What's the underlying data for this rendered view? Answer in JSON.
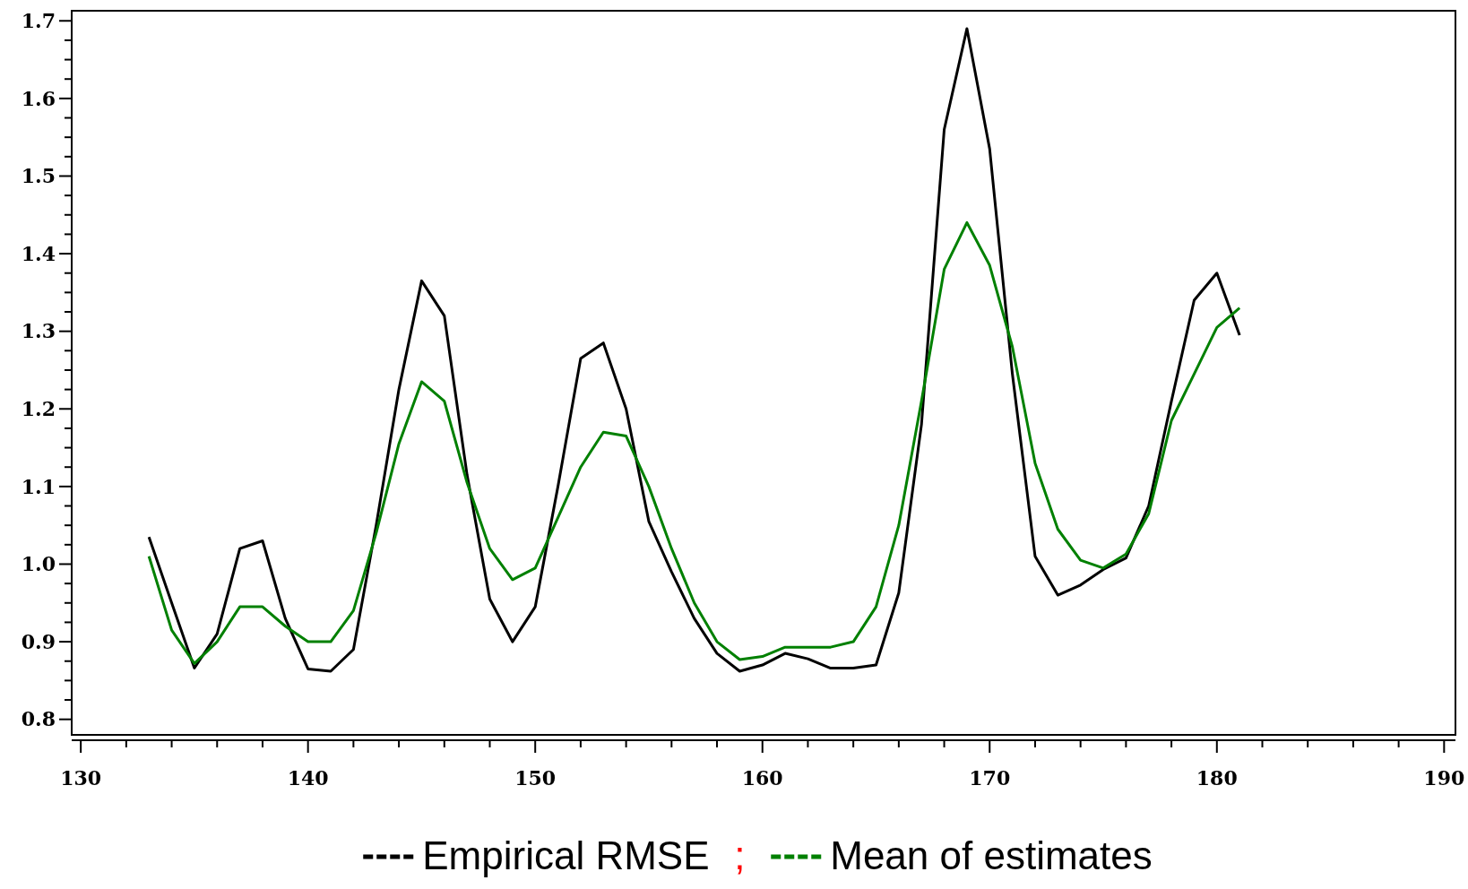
{
  "chart_data": {
    "type": "line",
    "x": [
      133,
      134,
      135,
      136,
      137,
      138,
      139,
      140,
      141,
      142,
      143,
      144,
      145,
      146,
      147,
      148,
      149,
      150,
      151,
      152,
      153,
      154,
      155,
      156,
      157,
      158,
      159,
      160,
      161,
      162,
      163,
      164,
      165,
      166,
      167,
      168,
      169,
      170,
      171,
      172,
      173,
      174,
      175,
      176,
      177,
      178,
      179,
      180,
      181
    ],
    "series": [
      {
        "name": "Empirical RMSE",
        "color": "#000000",
        "values": [
          1.035,
          0.95,
          0.866,
          0.91,
          1.02,
          1.03,
          0.93,
          0.865,
          0.862,
          0.89,
          1.05,
          1.225,
          1.365,
          1.32,
          1.115,
          0.955,
          0.9,
          0.945,
          1.1,
          1.265,
          1.285,
          1.2,
          1.055,
          0.99,
          0.93,
          0.885,
          0.862,
          0.87,
          0.885,
          0.878,
          0.866,
          0.866,
          0.87,
          0.963,
          1.18,
          1.56,
          1.69,
          1.535,
          1.245,
          1.01,
          0.96,
          0.973,
          0.993,
          1.008,
          1.075,
          1.21,
          1.34,
          1.375,
          1.295
        ]
      },
      {
        "name": "Mean of estimates",
        "color": "#008000",
        "values": [
          1.01,
          0.915,
          0.872,
          0.9,
          0.945,
          0.945,
          0.92,
          0.9,
          0.9,
          0.94,
          1.04,
          1.155,
          1.235,
          1.21,
          1.105,
          1.02,
          0.98,
          0.995,
          1.06,
          1.125,
          1.17,
          1.165,
          1.1,
          1.02,
          0.95,
          0.9,
          0.877,
          0.881,
          0.893,
          0.893,
          0.893,
          0.9,
          0.945,
          1.05,
          1.21,
          1.38,
          1.44,
          1.385,
          1.28,
          1.13,
          1.045,
          1.005,
          0.995,
          1.013,
          1.065,
          1.185,
          1.245,
          1.305,
          1.33
        ]
      }
    ],
    "xlim": [
      129.6,
      190.5
    ],
    "ylim": [
      0.78,
      1.713
    ],
    "xticks": [
      130,
      {
        "value": 132,
        "label": null
      },
      {
        "value": 134,
        "label": null
      },
      {
        "value": 136,
        "label": null
      },
      {
        "value": 138,
        "label": null
      },
      140,
      {
        "value": 142,
        "label": null
      },
      {
        "value": 144,
        "label": null
      },
      {
        "value": 146,
        "label": null
      },
      {
        "value": 148,
        "label": null
      },
      150,
      {
        "value": 152,
        "label": null
      },
      {
        "value": 154,
        "label": null
      },
      {
        "value": 156,
        "label": null
      },
      {
        "value": 158,
        "label": null
      },
      160,
      {
        "value": 162,
        "label": null
      },
      {
        "value": 164,
        "label": null
      },
      {
        "value": 166,
        "label": null
      },
      {
        "value": 168,
        "label": null
      },
      170,
      {
        "value": 172,
        "label": null
      },
      {
        "value": 174,
        "label": null
      },
      {
        "value": 176,
        "label": null
      },
      {
        "value": 178,
        "label": null
      },
      180,
      {
        "value": 182,
        "label": null
      },
      {
        "value": 184,
        "label": null
      },
      {
        "value": 186,
        "label": null
      },
      {
        "value": 188,
        "label": null
      },
      190
    ],
    "yticks": [
      {
        "value": 0.8,
        "label": "0.8"
      },
      {
        "value": 0.825,
        "label": null
      },
      {
        "value": 0.85,
        "label": null
      },
      {
        "value": 0.875,
        "label": null
      },
      {
        "value": 0.9,
        "label": "0.9"
      },
      {
        "value": 0.925,
        "label": null
      },
      {
        "value": 0.95,
        "label": null
      },
      {
        "value": 0.975,
        "label": null
      },
      {
        "value": 1.0,
        "label": "1.0"
      },
      {
        "value": 1.025,
        "label": null
      },
      {
        "value": 1.05,
        "label": null
      },
      {
        "value": 1.075,
        "label": null
      },
      {
        "value": 1.1,
        "label": "1.1"
      },
      {
        "value": 1.125,
        "label": null
      },
      {
        "value": 1.15,
        "label": null
      },
      {
        "value": 1.175,
        "label": null
      },
      {
        "value": 1.2,
        "label": "1.2"
      },
      {
        "value": 1.225,
        "label": null
      },
      {
        "value": 1.25,
        "label": null
      },
      {
        "value": 1.275,
        "label": null
      },
      {
        "value": 1.3,
        "label": "1.3"
      },
      {
        "value": 1.325,
        "label": null
      },
      {
        "value": 1.35,
        "label": null
      },
      {
        "value": 1.375,
        "label": null
      },
      {
        "value": 1.4,
        "label": "1.4"
      },
      {
        "value": 1.425,
        "label": null
      },
      {
        "value": 1.45,
        "label": null
      },
      {
        "value": 1.475,
        "label": null
      },
      {
        "value": 1.5,
        "label": "1.5"
      },
      {
        "value": 1.525,
        "label": null
      },
      {
        "value": 1.55,
        "label": null
      },
      {
        "value": 1.575,
        "label": null
      },
      {
        "value": 1.6,
        "label": "1.6"
      },
      {
        "value": 1.625,
        "label": null
      },
      {
        "value": 1.65,
        "label": null
      },
      {
        "value": 1.675,
        "label": null
      },
      {
        "value": 1.7,
        "label": "1.7"
      }
    ],
    "legend": "bottom",
    "marker": "none",
    "line_style": "solid",
    "grid": false,
    "annotations": [
      ";"
    ]
  }
}
